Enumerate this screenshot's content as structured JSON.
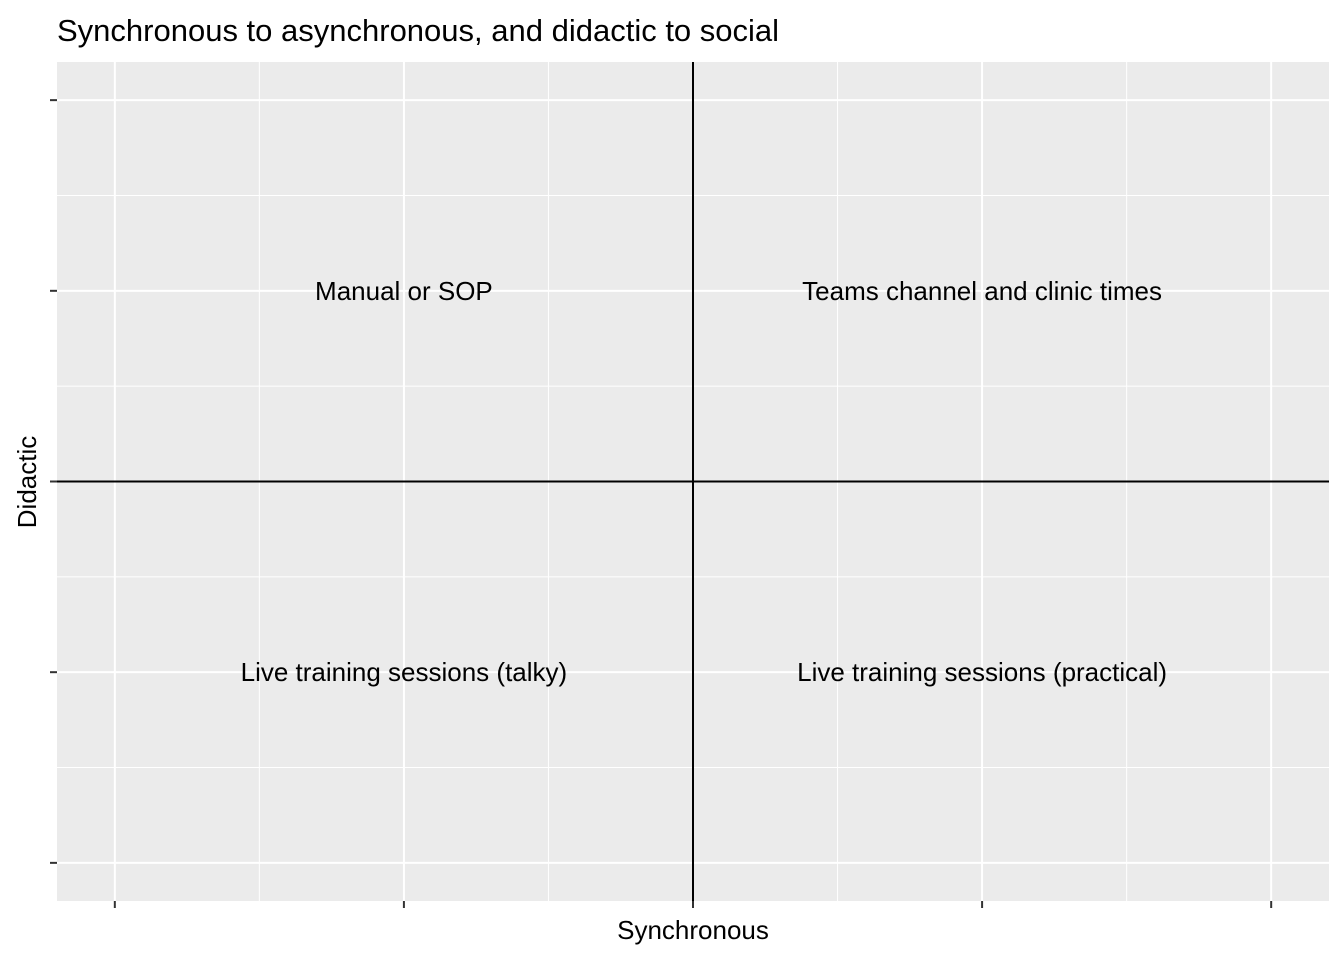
{
  "chart_data": {
    "type": "scatter",
    "title": "Synchronous to asynchronous, and didactic to social",
    "xlabel": "Synchronous",
    "ylabel": "Didactic",
    "xlim": [
      -1.1,
      1.1
    ],
    "ylim": [
      -1.1,
      1.1
    ],
    "x_breaks": [
      -1,
      -0.5,
      0,
      0.5,
      1
    ],
    "y_breaks": [
      -1,
      -0.5,
      0,
      0.5,
      1
    ],
    "grid": true,
    "reference_lines": {
      "vline": 0,
      "hline": 0
    },
    "colors": {
      "panel_background": "#EBEBEB",
      "grid": "#FFFFFF",
      "reference_line": "#000000",
      "text": "#000000"
    },
    "points": [
      {
        "x": -0.5,
        "y": 0.5,
        "label": "Manual or SOP"
      },
      {
        "x": 0.5,
        "y": 0.5,
        "label": "Teams channel and clinic times"
      },
      {
        "x": -0.5,
        "y": -0.5,
        "label": "Live training sessions (talky)"
      },
      {
        "x": 0.5,
        "y": -0.5,
        "label": "Live training sessions (practical)"
      }
    ]
  }
}
